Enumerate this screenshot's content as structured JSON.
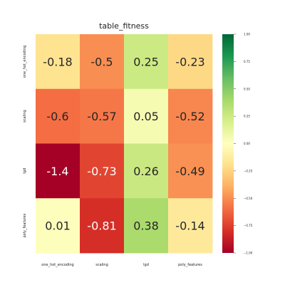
{
  "chart_data": {
    "type": "heatmap",
    "title": "table_fitness",
    "xlabel": "",
    "ylabel": "",
    "x_categories": [
      "one_hot_encoding",
      "scaling",
      "lgd",
      "poly_features"
    ],
    "y_categories": [
      "one_hot_encoding",
      "scaling",
      "lgd",
      "poly_features"
    ],
    "values": [
      [
        -0.18,
        -0.5,
        0.25,
        -0.23
      ],
      [
        -0.6,
        -0.57,
        0.05,
        -0.52
      ],
      [
        -1.4,
        -0.73,
        0.26,
        -0.49
      ],
      [
        0.01,
        -0.81,
        0.38,
        -0.14
      ]
    ],
    "labels": [
      [
        "-0.18",
        "-0.5",
        "0.25",
        "-0.23"
      ],
      [
        "-0.6",
        "-0.57",
        "0.05",
        "-0.52"
      ],
      [
        "-1.4",
        "-0.73",
        "0.26",
        "-0.49"
      ],
      [
        "0.01",
        "-0.81",
        "0.38",
        "-0.14"
      ]
    ],
    "colorscale": "RdYlGn",
    "vmin": -1.0,
    "vmax": 1.0,
    "colorbar_ticks": [
      1.0,
      0.75,
      0.5,
      0.25,
      0.0,
      -0.25,
      -0.5,
      -0.75,
      -1.0
    ],
    "colorbar_tick_labels": [
      "1.00",
      "0.75",
      "0.50",
      "0.25",
      "0.00",
      "−0.25",
      "−0.50",
      "−0.75",
      "−1.00"
    ]
  }
}
